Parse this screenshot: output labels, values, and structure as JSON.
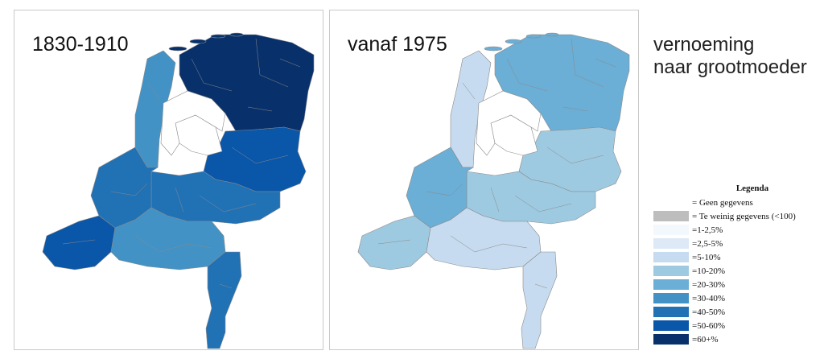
{
  "maps": {
    "left": {
      "title": "1830-1910"
    },
    "right": {
      "title": "vanaf 1975"
    }
  },
  "side_title": {
    "line1": "vernoeming",
    "line2": "naar grootmoeder"
  },
  "legend": {
    "title": "Legenda",
    "items": [
      {
        "label": "= Geen gegevens",
        "color": "#ffffff"
      },
      {
        "label": "= Te weinig gegevens (<100)",
        "color": "#bdbdbd"
      },
      {
        "label": "=1-2,5%",
        "color": "#f3f8fd"
      },
      {
        "label": "=2,5-5%",
        "color": "#dde9f6"
      },
      {
        "label": "=5-10%",
        "color": "#c6dbef"
      },
      {
        "label": "=10-20%",
        "color": "#9ecae1"
      },
      {
        "label": "=20-30%",
        "color": "#6baed6"
      },
      {
        "label": "=30-40%",
        "color": "#4292c6"
      },
      {
        "label": "=40-50%",
        "color": "#2171b5"
      },
      {
        "label": "=50-60%",
        "color": "#0a56a8"
      },
      {
        "label": "=60+%",
        "color": "#08306b"
      }
    ]
  }
}
